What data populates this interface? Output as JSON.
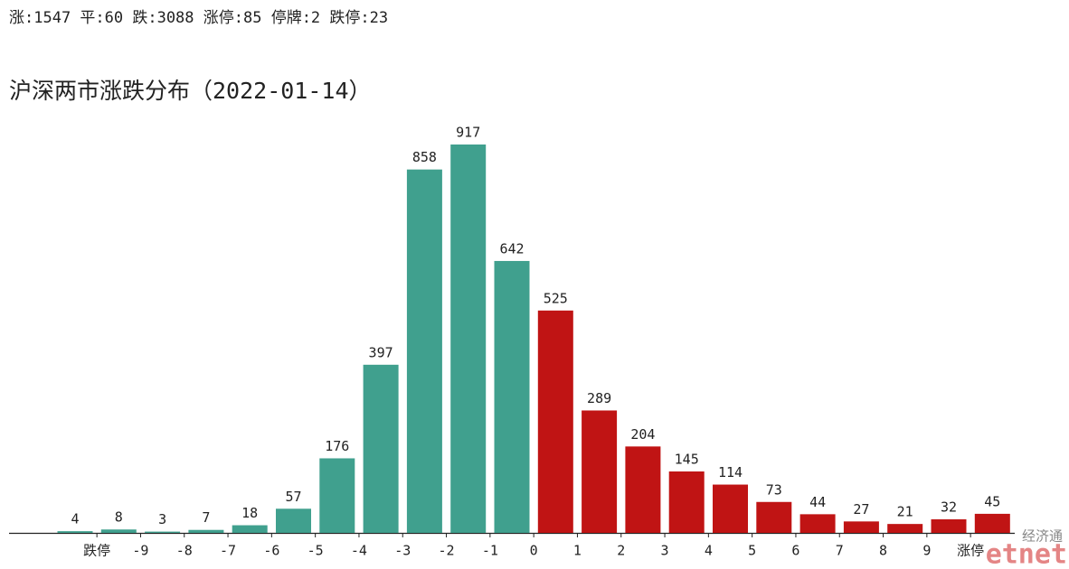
{
  "chart_data": {
    "type": "bar",
    "summary": "涨:1547 平:60 跌:3088 涨停:85 停牌:2 跌停:23",
    "title": "沪深两市涨跌分布（2022-01-14）",
    "tick_labels": [
      "跌停",
      "-9",
      "-8",
      "-7",
      "-6",
      "-5",
      "-4",
      "-3",
      "-2",
      "-1",
      "0",
      "1",
      "2",
      "3",
      "4",
      "5",
      "6",
      "7",
      "8",
      "9",
      "涨停"
    ],
    "series": [
      {
        "color": "#40a08e",
        "values": [
          4,
          8,
          3,
          7,
          18,
          57,
          176,
          397,
          858,
          917,
          642
        ]
      },
      {
        "color": "#c01414",
        "values": [
          525,
          289,
          204,
          145,
          114,
          73,
          44,
          27,
          21,
          32,
          45
        ]
      }
    ],
    "ylim": [
      0,
      917
    ],
    "watermark": {
      "cn": "经济通",
      "en": "etnet"
    }
  }
}
